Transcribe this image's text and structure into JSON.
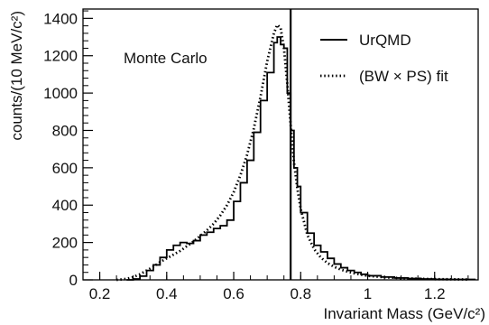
{
  "chart_data": {
    "type": "line",
    "xlabel": "Invariant Mass (GeV/c²)",
    "ylabel": "counts/(10 MeV/c²)",
    "xlim": [
      0.15,
      1.33
    ],
    "ylim": [
      0,
      1450
    ],
    "xticks": [
      0.2,
      0.4,
      0.6,
      0.8,
      1.0,
      1.2
    ],
    "xtick_labels": [
      "0.2",
      "0.4",
      "0.6",
      "0.8",
      "1",
      "1.2"
    ],
    "yticks": [
      0,
      200,
      400,
      600,
      800,
      1000,
      1200,
      1400
    ],
    "ytick_labels": [
      "0",
      "200",
      "400",
      "600",
      "800",
      "1000",
      "1200",
      "1400"
    ],
    "annotation": "Monte Carlo",
    "vertical_line_x": 0.77,
    "legend": {
      "placement": "top-right"
    },
    "series": [
      {
        "name": "UrQMD",
        "style": "step",
        "x": [
          0.28,
          0.3,
          0.32,
          0.34,
          0.36,
          0.38,
          0.4,
          0.42,
          0.44,
          0.46,
          0.48,
          0.5,
          0.52,
          0.54,
          0.56,
          0.58,
          0.6,
          0.62,
          0.64,
          0.66,
          0.68,
          0.7,
          0.72,
          0.73,
          0.74,
          0.75,
          0.76,
          0.77,
          0.78,
          0.79,
          0.8,
          0.82,
          0.84,
          0.86,
          0.88,
          0.9,
          0.92,
          0.94,
          0.96,
          0.98,
          1.0,
          1.04,
          1.08,
          1.12,
          1.16,
          1.2,
          1.25,
          1.32
        ],
        "y": [
          0,
          5,
          20,
          50,
          80,
          120,
          160,
          185,
          200,
          195,
          210,
          240,
          255,
          275,
          290,
          320,
          420,
          520,
          640,
          790,
          960,
          1110,
          1270,
          1300,
          1260,
          1240,
          1000,
          800,
          600,
          500,
          360,
          250,
          185,
          150,
          115,
          85,
          65,
          50,
          40,
          30,
          22,
          15,
          10,
          7,
          5,
          3,
          2,
          0
        ]
      },
      {
        "name": "(BW × PS) fit",
        "style": "dotted",
        "x": [
          0.25,
          0.28,
          0.3,
          0.32,
          0.34,
          0.36,
          0.38,
          0.4,
          0.42,
          0.44,
          0.46,
          0.48,
          0.5,
          0.52,
          0.54,
          0.56,
          0.58,
          0.6,
          0.62,
          0.64,
          0.66,
          0.68,
          0.7,
          0.72,
          0.73,
          0.74,
          0.75,
          0.76,
          0.77,
          0.78,
          0.79,
          0.8,
          0.82,
          0.84,
          0.86,
          0.88,
          0.9,
          0.92,
          0.94,
          0.96,
          0.98,
          1.0,
          1.05,
          1.1,
          1.15,
          1.2,
          1.25,
          1.3
        ],
        "y": [
          0,
          5,
          15,
          30,
          50,
          70,
          95,
          115,
          135,
          155,
          180,
          205,
          235,
          265,
          300,
          345,
          400,
          470,
          560,
          670,
          810,
          980,
          1170,
          1320,
          1365,
          1350,
          1240,
          1050,
          830,
          630,
          490,
          380,
          240,
          165,
          120,
          90,
          70,
          55,
          44,
          35,
          28,
          22,
          14,
          9,
          6,
          4,
          3,
          2
        ]
      }
    ]
  }
}
